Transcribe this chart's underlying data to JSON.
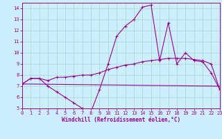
{
  "background_color": "#cceeff",
  "grid_color": "#aaddcc",
  "line_color": "#990099",
  "xlabel": "Windchill (Refroidissement éolien,°C)",
  "xlim": [
    0,
    23
  ],
  "ylim": [
    5,
    14.5
  ],
  "xticks": [
    0,
    1,
    2,
    3,
    4,
    5,
    6,
    7,
    8,
    9,
    10,
    11,
    12,
    13,
    14,
    15,
    16,
    17,
    18,
    19,
    20,
    21,
    22,
    23
  ],
  "yticks": [
    5,
    6,
    7,
    8,
    9,
    10,
    11,
    12,
    13,
    14
  ],
  "line1_x": [
    0,
    1,
    2,
    3,
    4,
    5,
    6,
    7,
    8,
    9,
    10,
    11,
    12,
    13,
    14,
    15,
    16,
    17,
    18,
    19,
    20,
    21,
    22,
    23
  ],
  "line1_y": [
    7.2,
    7.7,
    7.7,
    7.0,
    6.5,
    6.0,
    5.5,
    5.0,
    4.7,
    6.7,
    9.0,
    11.5,
    12.4,
    13.0,
    14.1,
    14.3,
    9.3,
    12.7,
    9.0,
    10.0,
    9.3,
    9.2,
    8.2,
    6.7
  ],
  "line2_x": [
    0,
    1,
    2,
    3,
    4,
    5,
    6,
    7,
    8,
    9,
    10,
    11,
    12,
    13,
    14,
    15,
    16,
    17,
    18,
    19,
    20,
    21,
    22,
    23
  ],
  "line2_y": [
    7.2,
    7.7,
    7.7,
    7.5,
    7.8,
    7.8,
    7.9,
    8.0,
    8.0,
    8.2,
    8.5,
    8.7,
    8.9,
    9.0,
    9.2,
    9.3,
    9.4,
    9.5,
    9.5,
    9.5,
    9.4,
    9.3,
    9.0,
    6.7
  ],
  "line3_x": [
    0,
    23
  ],
  "line3_y": [
    7.2,
    7.0
  ]
}
